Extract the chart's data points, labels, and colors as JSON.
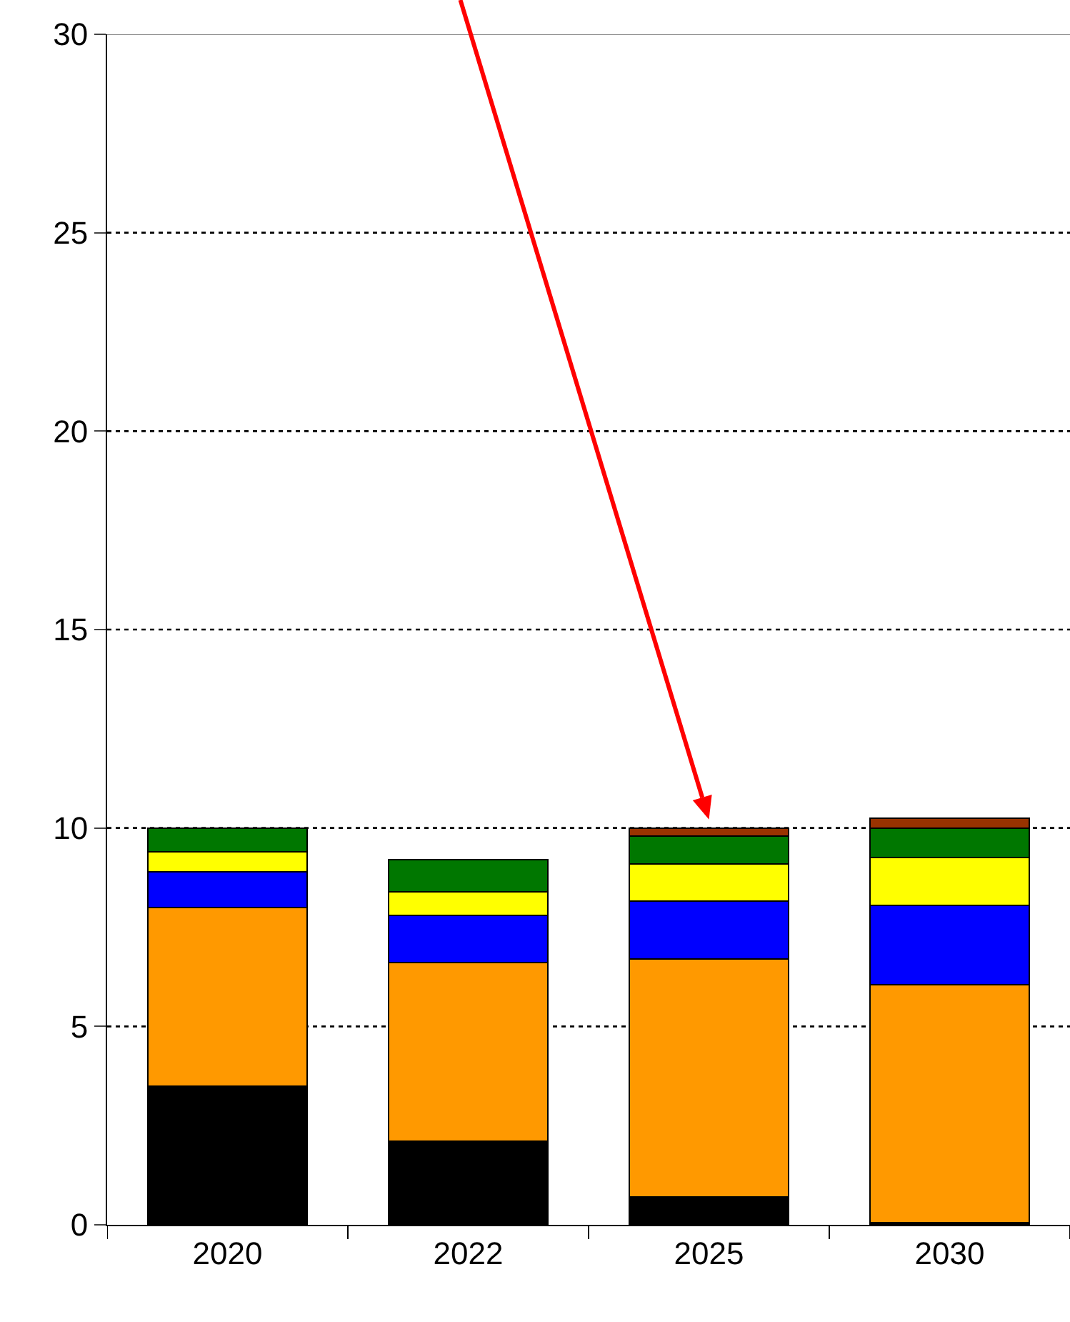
{
  "chart_data": {
    "type": "bar",
    "stacked": true,
    "categories": [
      "2020",
      "2022",
      "2025",
      "2030"
    ],
    "series": [
      {
        "color": "#000000",
        "values": [
          3.5,
          2.1,
          0.7,
          0.05
        ]
      },
      {
        "color": "#ff9900",
        "values": [
          4.5,
          4.5,
          6.0,
          6.0
        ]
      },
      {
        "color": "#0000ff",
        "values": [
          0.9,
          1.2,
          1.45,
          2.0
        ]
      },
      {
        "color": "#ffff00",
        "values": [
          0.5,
          0.6,
          0.95,
          1.2
        ]
      },
      {
        "color": "#007700",
        "values": [
          0.6,
          0.8,
          0.7,
          0.75
        ]
      },
      {
        "color": "#993300",
        "values": [
          null,
          null,
          0.2,
          0.25
        ]
      }
    ],
    "ylim": [
      0,
      30
    ],
    "yticks": [
      0,
      5,
      10,
      15,
      20,
      25,
      30
    ],
    "grid": "y"
  }
}
